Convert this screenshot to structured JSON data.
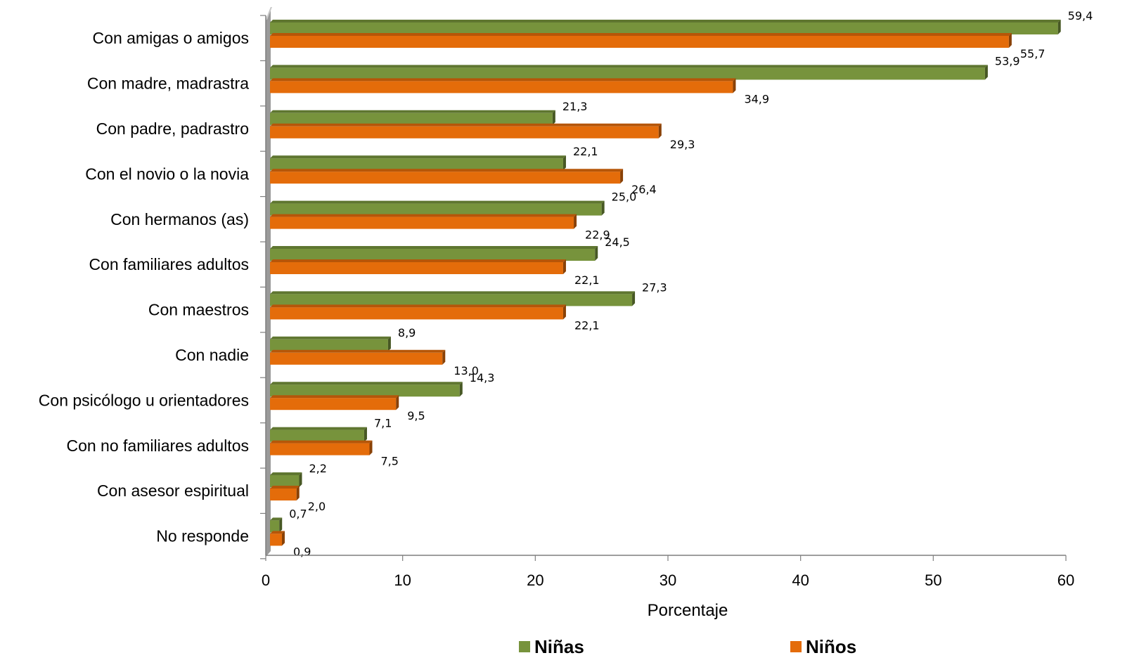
{
  "chart_data": {
    "type": "bar",
    "orientation": "horizontal",
    "categories": [
      "Con amigas o amigos",
      "Con madre, madrastra",
      "Con padre, padrastro",
      "Con el novio o la novia",
      "Con hermanos (as)",
      "Con familiares adultos",
      "Con maestros",
      "Con nadie",
      "Con psicólogo u orientadores",
      "Con no familiares adultos",
      "Con asesor espiritual",
      "No responde"
    ],
    "series": [
      {
        "name": "Niñas",
        "color": "#77933C",
        "values": [
          59.4,
          53.9,
          21.3,
          22.1,
          25.0,
          24.5,
          27.3,
          8.9,
          14.3,
          7.1,
          2.2,
          0.7
        ],
        "labels": [
          "59,4",
          "53,9",
          "21,3",
          "22,1",
          "25,0",
          "24,5",
          "27,3",
          "8,9",
          "14,3",
          "7,1",
          "2,2",
          "0,7"
        ]
      },
      {
        "name": "Niños",
        "color": "#E46C0A",
        "values": [
          55.7,
          34.9,
          29.3,
          26.4,
          22.9,
          22.1,
          22.1,
          13.0,
          9.5,
          7.5,
          2.0,
          0.9
        ],
        "labels": [
          "55,7",
          "34,9",
          "29,3",
          "26,4",
          "22,9",
          "22,1",
          "22,1",
          "13,0",
          "9,5",
          "7,5",
          "2,0",
          "0,9"
        ]
      }
    ],
    "xlabel": "Porcentaje",
    "ylabel": "",
    "xlim": [
      0,
      60
    ],
    "xticks": [
      0,
      10,
      20,
      30,
      40,
      50,
      60
    ],
    "grid": false,
    "legend_position": "bottom"
  }
}
